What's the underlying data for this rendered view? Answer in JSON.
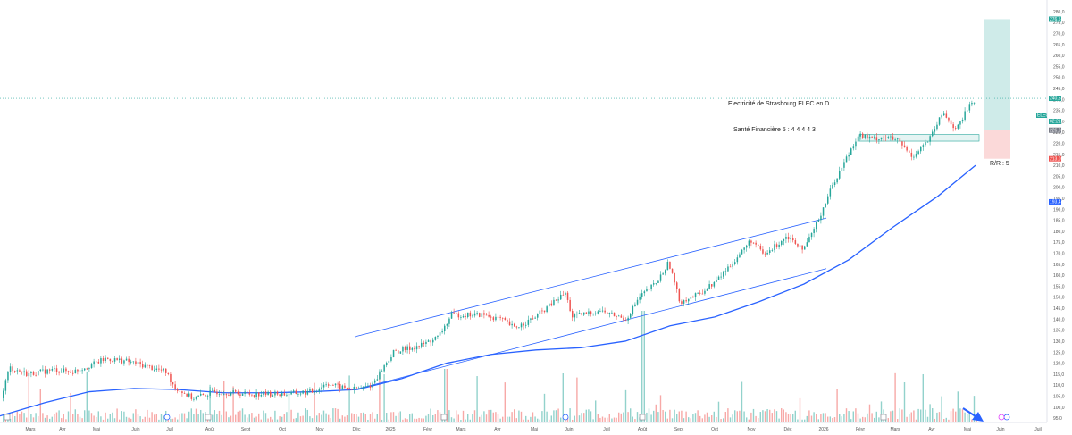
{
  "chart_data": {
    "type": "candlestick",
    "instrument": {
      "annotation": "Electricité de Strasbourg   ELEC  en  D",
      "health": "Santé Financière 5 : 4 4 4 4 3",
      "rr": "R/R : 5"
    },
    "ylim": [
      93,
      284
    ],
    "y_ticks": [
      "95,0",
      "100,0",
      "105,0",
      "110,0",
      "115,0",
      "120,0",
      "125,0",
      "130,0",
      "135,0",
      "140,0",
      "145,0",
      "150,0",
      "155,0",
      "160,0",
      "165,0",
      "170,0",
      "175,0",
      "180,0",
      "185,0",
      "190,0",
      "195,0",
      "200,0",
      "205,0",
      "210,0",
      "215,0",
      "220,0",
      "225,0",
      "230,0",
      "235,0",
      "240,0",
      "245,0",
      "250,0",
      "255,0",
      "260,0",
      "265,0",
      "270,0",
      "275,0",
      "280,0"
    ],
    "price_tags": [
      {
        "text": "ELEC",
        "color": "#26a69a"
      },
      {
        "text": "240,5",
        "value": 240.5,
        "color": "#26a69a"
      },
      {
        "text": "02:21:16",
        "color": "#26a69a"
      },
      {
        "text": "276,5",
        "value": 276.5,
        "color": "#26a69a"
      },
      {
        "text": "226,0",
        "value": 226.0,
        "color": "#787b86"
      },
      {
        "text": "213,0",
        "value": 213.0,
        "color": "#ef5350"
      },
      {
        "text": "193,4",
        "value": 193.4,
        "color": "#2962ff"
      }
    ],
    "x_labels": [
      "Mars",
      "Avr",
      "Mai",
      "Juin",
      "Juil",
      "Août",
      "Sept",
      "Oct",
      "Nov",
      "Déc",
      "2025",
      "Févr",
      "Mars",
      "Avr",
      "Mai",
      "Juin",
      "Juil",
      "Août",
      "Sept",
      "Oct",
      "Nov",
      "Déc",
      "2026",
      "Févr",
      "Mars",
      "Avr",
      "Mai",
      "Juin",
      "Juil"
    ],
    "anchors": [
      [
        0,
        104
      ],
      [
        10,
        118
      ],
      [
        30,
        115
      ],
      [
        60,
        117
      ],
      [
        80,
        116
      ],
      [
        100,
        119
      ],
      [
        118,
        122
      ],
      [
        140,
        121
      ],
      [
        160,
        119
      ],
      [
        185,
        116
      ],
      [
        195,
        109
      ],
      [
        215,
        104
      ],
      [
        240,
        107
      ],
      [
        280,
        106
      ],
      [
        320,
        106
      ],
      [
        350,
        107
      ],
      [
        365,
        111
      ],
      [
        380,
        109
      ],
      [
        400,
        108
      ],
      [
        415,
        110
      ],
      [
        440,
        125
      ],
      [
        470,
        128
      ],
      [
        490,
        132
      ],
      [
        505,
        142
      ],
      [
        540,
        142
      ],
      [
        560,
        140
      ],
      [
        575,
        136
      ],
      [
        595,
        140
      ],
      [
        620,
        148
      ],
      [
        632,
        152
      ],
      [
        640,
        141
      ],
      [
        670,
        144
      ],
      [
        700,
        140
      ],
      [
        715,
        150
      ],
      [
        735,
        157
      ],
      [
        748,
        166
      ],
      [
        760,
        148
      ],
      [
        780,
        151
      ],
      [
        800,
        157
      ],
      [
        820,
        166
      ],
      [
        840,
        176
      ],
      [
        855,
        169
      ],
      [
        880,
        178
      ],
      [
        900,
        172
      ],
      [
        915,
        185
      ],
      [
        930,
        200
      ],
      [
        945,
        212
      ],
      [
        960,
        224
      ],
      [
        975,
        222
      ],
      [
        990,
        223
      ],
      [
        1005,
        221
      ],
      [
        1020,
        214
      ],
      [
        1040,
        222
      ],
      [
        1055,
        234
      ],
      [
        1070,
        226
      ],
      [
        1085,
        238
      ],
      [
        1092,
        240.5
      ]
    ],
    "ma": [
      [
        0,
        96
      ],
      [
        50,
        102
      ],
      [
        100,
        107
      ],
      [
        150,
        108.5
      ],
      [
        200,
        108
      ],
      [
        250,
        106.5
      ],
      [
        300,
        106.5
      ],
      [
        350,
        107
      ],
      [
        400,
        108
      ],
      [
        450,
        113
      ],
      [
        500,
        120
      ],
      [
        550,
        124
      ],
      [
        600,
        126
      ],
      [
        650,
        127
      ],
      [
        700,
        130
      ],
      [
        750,
        137
      ],
      [
        800,
        141
      ],
      [
        850,
        148
      ],
      [
        900,
        156
      ],
      [
        950,
        167
      ],
      [
        1000,
        182
      ],
      [
        1050,
        196
      ],
      [
        1092,
        210
      ]
    ],
    "channel": {
      "upper": [
        [
          397,
          132
        ],
        [
          925,
          186
        ]
      ],
      "lower": [
        [
          397,
          108
        ],
        [
          925,
          163
        ]
      ]
    },
    "range_box": {
      "x1": 962,
      "x2": 1096,
      "y1": 224,
      "y2": 221
    },
    "long_position": {
      "x1": 1102,
      "x2": 1131,
      "entry": 226,
      "target": 276.5,
      "stop": 213
    }
  }
}
